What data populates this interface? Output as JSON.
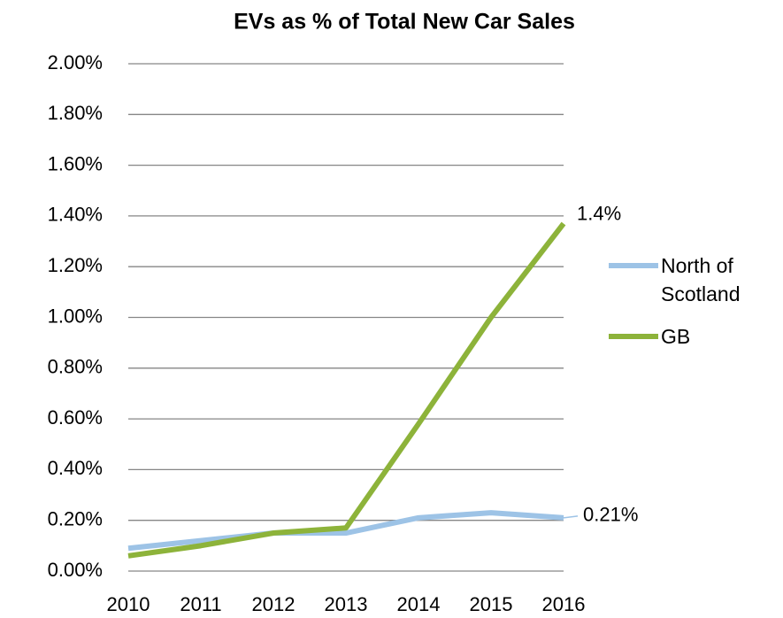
{
  "chart_data": {
    "type": "line",
    "title": "EVs as % of Total New Car Sales",
    "categories": [
      "2010",
      "2011",
      "2012",
      "2013",
      "2014",
      "2015",
      "2016"
    ],
    "series": [
      {
        "name": "North of Scotland",
        "color": "#9dc3e6",
        "values": [
          0.09,
          0.12,
          0.15,
          0.15,
          0.21,
          0.23,
          0.21
        ],
        "value_labels": [
          null,
          null,
          null,
          null,
          null,
          null,
          "0.21%"
        ]
      },
      {
        "name": "GB",
        "color": "#8db33a",
        "values": [
          0.06,
          0.1,
          0.15,
          0.17,
          0.58,
          1.0,
          1.37
        ],
        "value_labels": [
          null,
          null,
          null,
          null,
          null,
          null,
          "1.4%"
        ]
      }
    ],
    "ylim": [
      0,
      2
    ],
    "yticks": [
      {
        "value": 0,
        "label": "0.00%"
      },
      {
        "value": 0.2,
        "label": "0.20%"
      },
      {
        "value": 0.4,
        "label": "0.40%"
      },
      {
        "value": 0.6,
        "label": "0.60%"
      },
      {
        "value": 0.8,
        "label": "0.80%"
      },
      {
        "value": 1.0,
        "label": "1.00%"
      },
      {
        "value": 1.2,
        "label": "1.20%"
      },
      {
        "value": 1.4,
        "label": "1.40%"
      },
      {
        "value": 1.6,
        "label": "1.60%"
      },
      {
        "value": 1.8,
        "label": "1.80%"
      },
      {
        "value": 2.0,
        "label": "2.00%"
      }
    ],
    "grid": true,
    "legend": "right"
  }
}
